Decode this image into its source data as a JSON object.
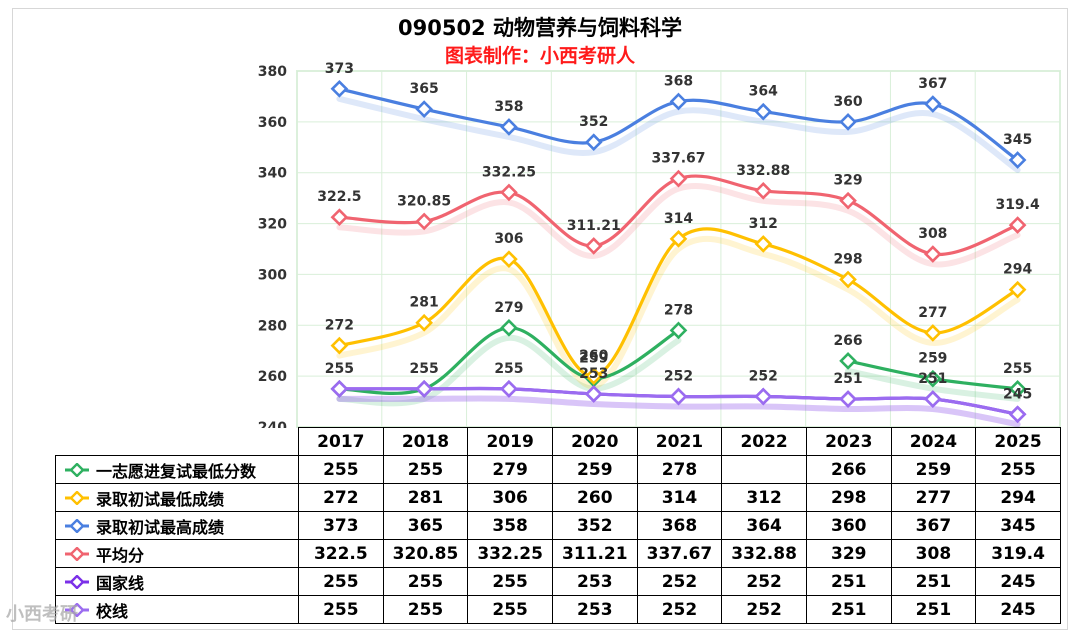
{
  "title": "090502 动物营养与饲料科学",
  "subtitle": "图表制作：小西考研人",
  "watermark": "小西考研",
  "chart_data": {
    "type": "line",
    "categories": [
      "2017",
      "2018",
      "2019",
      "2020",
      "2021",
      "2022",
      "2023",
      "2024",
      "2025"
    ],
    "ylim": [
      240,
      380
    ],
    "yticks": [
      240,
      260,
      280,
      300,
      320,
      340,
      360,
      380
    ],
    "grid": true,
    "series": [
      {
        "name": "一志愿进复试最低分数",
        "color": "#2eb060",
        "values": [
          255,
          255,
          279,
          259,
          278,
          null,
          266,
          259,
          255
        ],
        "labels": [
          "255",
          "255",
          "279",
          "259",
          "278",
          "",
          "266",
          "259",
          "255"
        ]
      },
      {
        "name": "录取初试最低成绩",
        "color": "#ffc000",
        "values": [
          272,
          281,
          306,
          260,
          314,
          312,
          298,
          277,
          294
        ],
        "labels": [
          "272",
          "281",
          "306",
          "260",
          "314",
          "312",
          "298",
          "277",
          "294"
        ]
      },
      {
        "name": "录取初试最高成绩",
        "color": "#4a7fe0",
        "values": [
          373,
          365,
          358,
          352,
          368,
          364,
          360,
          367,
          345
        ],
        "labels": [
          "373",
          "365",
          "358",
          "352",
          "368",
          "364",
          "360",
          "367",
          "345"
        ]
      },
      {
        "name": "平均分",
        "color": "#f06470",
        "values": [
          322.5,
          320.85,
          332.25,
          311.21,
          337.67,
          332.88,
          329,
          308,
          319.4
        ],
        "labels": [
          "322.5",
          "320.85",
          "332.25",
          "311.21",
          "337.67",
          "332.88",
          "329",
          "308",
          "319.4"
        ]
      },
      {
        "name": "国家线",
        "color": "#7b30e8",
        "values": [
          255,
          255,
          255,
          253,
          252,
          252,
          251,
          251,
          245
        ],
        "labels": [
          "255",
          "255",
          "255",
          "253",
          "252",
          "252",
          "251",
          "251",
          "245"
        ]
      },
      {
        "name": "校线",
        "color": "#9b6cf0",
        "values": [
          255,
          255,
          255,
          253,
          252,
          252,
          251,
          251,
          245
        ],
        "labels": [
          "255",
          "255",
          "255",
          "253",
          "252",
          "252",
          "251",
          "251",
          "245"
        ]
      }
    ]
  }
}
